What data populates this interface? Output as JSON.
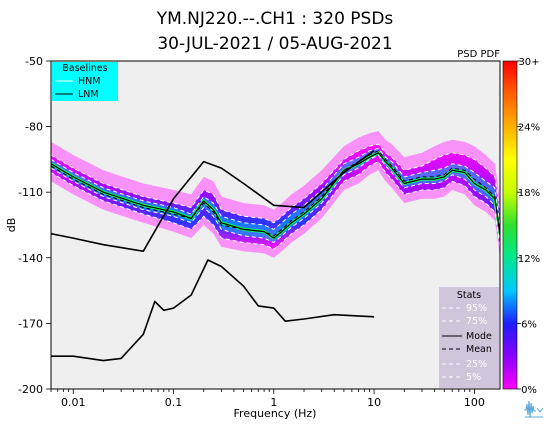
{
  "chart_data": {
    "type": "line",
    "title_line1": "YM.NJ220.--.CH1 : 320 PSDs",
    "title_line2": "30-JUL-2021 / 05-AUG-2021",
    "xlabel": "Frequency (Hz)",
    "ylabel": "dB",
    "xscale": "log",
    "xlim": [
      0.006,
      180
    ],
    "ylim": [
      -200,
      -50
    ],
    "xticks": [
      {
        "value": 0.01,
        "label": "0.01"
      },
      {
        "value": 0.1,
        "label": "0.1"
      },
      {
        "value": 1,
        "label": "1"
      },
      {
        "value": 10,
        "label": "10"
      },
      {
        "value": 100,
        "label": "100"
      }
    ],
    "yticks": [
      {
        "value": -50,
        "label": "-50"
      },
      {
        "value": -80,
        "label": "-80"
      },
      {
        "value": -110,
        "label": "-110"
      },
      {
        "value": -140,
        "label": "-140"
      },
      {
        "value": -170,
        "label": "-170"
      },
      {
        "value": -200,
        "label": "-200"
      }
    ],
    "grid": false,
    "plot_background": "#efefef",
    "pdf_label": "PSD PDF",
    "colorbar": {
      "ticks": [
        "30+",
        "24%",
        "18%",
        "12%",
        "6%",
        "0%"
      ],
      "colors": [
        "#ff00ff",
        "#8a00ff",
        "#1e1eff",
        "#00c8ff",
        "#00e890",
        "#30e030",
        "#c8ff00",
        "#ffff00",
        "#ffb000",
        "#ff6000",
        "#ff0000"
      ]
    },
    "baselines_legend": {
      "title": "Baselines",
      "items": [
        "HNM",
        "LNM"
      ],
      "background": "#00ffff",
      "placement": "top-left"
    },
    "stats_legend": {
      "title": "Stats",
      "items": [
        "95%",
        "75%",
        "Mode",
        "Mean",
        "25%",
        "5%"
      ],
      "background": "#cfc6dc",
      "placement": "bottom-right"
    },
    "series": [
      {
        "name": "HNM",
        "x": [
          0.006,
          0.01,
          0.02,
          0.05,
          0.1,
          0.2,
          0.3,
          0.5,
          1,
          2,
          5,
          10
        ],
        "y": [
          -129,
          -131,
          -134,
          -137,
          -113,
          -96,
          -99,
          -106,
          -116,
          -117,
          -101,
          -91
        ]
      },
      {
        "name": "LNM",
        "x": [
          0.006,
          0.01,
          0.02,
          0.03,
          0.05,
          0.065,
          0.08,
          0.1,
          0.15,
          0.22,
          0.3,
          0.5,
          0.7,
          1,
          1.3,
          2,
          4,
          10
        ],
        "y": [
          -185,
          -185,
          -187,
          -186,
          -175,
          -160,
          -164,
          -163,
          -157,
          -141,
          -144,
          -153,
          -162,
          -163,
          -169,
          -168,
          -166,
          -167
        ]
      },
      {
        "name": "Mode",
        "x": [
          0.006,
          0.01,
          0.02,
          0.05,
          0.1,
          0.15,
          0.2,
          0.25,
          0.3,
          0.5,
          0.8,
          1,
          1.2,
          1.5,
          2,
          3,
          5,
          7,
          9,
          11,
          13,
          15,
          20,
          30,
          40,
          50,
          60,
          80,
          100,
          130,
          160,
          180
        ],
        "y": [
          -97,
          -103,
          -110,
          -116,
          -119,
          -122,
          -114,
          -118,
          -124,
          -127,
          -128,
          -131,
          -128,
          -124,
          -120,
          -113,
          -100,
          -97,
          -94,
          -92,
          -96,
          -99,
          -106,
          -104,
          -104,
          -103,
          -100,
          -101,
          -106,
          -109,
          -113,
          -130
        ]
      },
      {
        "name": "Mean",
        "x": [
          0.006,
          0.01,
          0.02,
          0.05,
          0.1,
          0.15,
          0.2,
          0.25,
          0.3,
          0.5,
          0.8,
          1,
          1.2,
          1.5,
          2,
          3,
          5,
          7,
          9,
          11,
          13,
          15,
          20,
          30,
          40,
          50,
          60,
          80,
          100,
          130,
          160,
          180
        ],
        "y": [
          -98,
          -104,
          -111,
          -117,
          -120,
          -122,
          -115,
          -119,
          -125,
          -127,
          -128,
          -130,
          -127,
          -123,
          -119,
          -112,
          -100,
          -96,
          -93,
          -91,
          -95,
          -98,
          -105,
          -103,
          -103,
          -102,
          -99,
          -100,
          -104,
          -108,
          -112,
          -128
        ]
      },
      {
        "name": "95%",
        "x": [
          0.006,
          0.01,
          0.02,
          0.05,
          0.1,
          0.15,
          0.2,
          0.25,
          0.3,
          0.5,
          0.8,
          1,
          1.2,
          1.5,
          2,
          3,
          5,
          7,
          9,
          11,
          13,
          15,
          20,
          30,
          40,
          50,
          60,
          80,
          100,
          130,
          160,
          180
        ],
        "y": [
          -93,
          -99,
          -106,
          -112,
          -115,
          -117,
          -109,
          -111,
          -118,
          -121,
          -122,
          -124,
          -121,
          -117,
          -113,
          -106,
          -95,
          -91,
          -89,
          -88,
          -92,
          -94,
          -100,
          -98,
          -95,
          -93,
          -92,
          -93,
          -95,
          -99,
          -103,
          -120
        ]
      },
      {
        "name": "75%",
        "x": [
          0.006,
          0.01,
          0.02,
          0.05,
          0.1,
          0.15,
          0.2,
          0.25,
          0.3,
          0.5,
          0.8,
          1,
          1.2,
          1.5,
          2,
          3,
          5,
          7,
          9,
          11,
          13,
          15,
          20,
          30,
          40,
          50,
          60,
          80,
          100,
          130,
          160,
          180
        ],
        "y": [
          -95,
          -101,
          -108,
          -114,
          -117,
          -120,
          -112,
          -115,
          -121,
          -124,
          -125,
          -127,
          -124,
          -120,
          -116,
          -109,
          -97,
          -94,
          -91,
          -90,
          -94,
          -96,
          -103,
          -101,
          -100,
          -99,
          -97,
          -98,
          -101,
          -105,
          -108,
          -125
        ]
      },
      {
        "name": "25%",
        "x": [
          0.006,
          0.01,
          0.02,
          0.05,
          0.1,
          0.15,
          0.2,
          0.25,
          0.3,
          0.5,
          0.8,
          1,
          1.2,
          1.5,
          2,
          3,
          5,
          7,
          9,
          11,
          13,
          15,
          20,
          30,
          40,
          50,
          60,
          80,
          100,
          130,
          160,
          180
        ],
        "y": [
          -99,
          -105,
          -112,
          -118,
          -121,
          -124,
          -117,
          -121,
          -127,
          -130,
          -131,
          -133,
          -130,
          -126,
          -122,
          -115,
          -102,
          -99,
          -95,
          -93,
          -98,
          -101,
          -108,
          -106,
          -106,
          -105,
          -102,
          -104,
          -109,
          -112,
          -116,
          -133
        ]
      },
      {
        "name": "5%",
        "x": [
          0.006,
          0.01,
          0.02,
          0.05,
          0.1,
          0.15,
          0.2,
          0.25,
          0.3,
          0.5,
          0.8,
          1,
          1.2,
          1.5,
          2,
          3,
          5,
          7,
          9,
          11,
          13,
          15,
          20,
          30,
          40,
          50,
          60,
          80,
          100,
          130,
          160,
          180
        ],
        "y": [
          -101,
          -107,
          -114,
          -120,
          -124,
          -127,
          -121,
          -125,
          -131,
          -133,
          -134,
          -136,
          -133,
          -129,
          -125,
          -118,
          -105,
          -102,
          -98,
          -96,
          -101,
          -104,
          -111,
          -109,
          -109,
          -108,
          -105,
          -107,
          -112,
          -115,
          -119,
          -136
        ]
      }
    ]
  }
}
